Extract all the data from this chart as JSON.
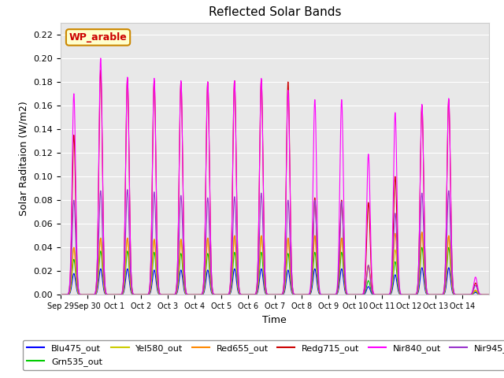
{
  "title": "Reflected Solar Bands",
  "xlabel": "Time",
  "ylabel": "Solar Raditaion (W/m2)",
  "ylim": [
    0,
    0.23
  ],
  "yticks": [
    0.0,
    0.02,
    0.04,
    0.06,
    0.08,
    0.1,
    0.12,
    0.14,
    0.16,
    0.18,
    0.2,
    0.22
  ],
  "bg_color": "#e8e8e8",
  "annotation_text": "WP_arable",
  "annotation_bg": "#ffffcc",
  "annotation_border": "#cc8800",
  "annotation_text_color": "#cc0000",
  "series_colors": {
    "Blu475_out": "#0000ff",
    "Grn535_out": "#00cc00",
    "Yel580_out": "#cccc00",
    "Red655_out": "#ff8800",
    "Redg715_out": "#cc0000",
    "Nir840_out": "#ff00ff",
    "Nir945_out": "#9933cc"
  },
  "peaks": {
    "Sep29": {
      "Blu475_out": 0.018,
      "Grn535_out": 0.03,
      "Yel580_out": 0.04,
      "Red655_out": 0.04,
      "Redg715_out": 0.135,
      "Nir840_out": 0.17,
      "Nir945_out": 0.08
    },
    "Sep30": {
      "Blu475_out": 0.022,
      "Grn535_out": 0.037,
      "Yel580_out": 0.048,
      "Red655_out": 0.048,
      "Redg715_out": 0.19,
      "Nir840_out": 0.2,
      "Nir945_out": 0.088
    },
    "Oct1": {
      "Blu475_out": 0.022,
      "Grn535_out": 0.037,
      "Yel580_out": 0.048,
      "Red655_out": 0.048,
      "Redg715_out": 0.183,
      "Nir840_out": 0.184,
      "Nir945_out": 0.089
    },
    "Oct2": {
      "Blu475_out": 0.021,
      "Grn535_out": 0.036,
      "Yel580_out": 0.047,
      "Red655_out": 0.047,
      "Redg715_out": 0.181,
      "Nir840_out": 0.183,
      "Nir945_out": 0.087
    },
    "Oct3": {
      "Blu475_out": 0.021,
      "Grn535_out": 0.035,
      "Yel580_out": 0.047,
      "Red655_out": 0.047,
      "Redg715_out": 0.18,
      "Nir840_out": 0.181,
      "Nir945_out": 0.084
    },
    "Oct4": {
      "Blu475_out": 0.021,
      "Grn535_out": 0.035,
      "Yel580_out": 0.048,
      "Red655_out": 0.048,
      "Redg715_out": 0.18,
      "Nir840_out": 0.18,
      "Nir945_out": 0.082
    },
    "Oct5": {
      "Blu475_out": 0.022,
      "Grn535_out": 0.036,
      "Yel580_out": 0.05,
      "Red655_out": 0.05,
      "Redg715_out": 0.181,
      "Nir840_out": 0.181,
      "Nir945_out": 0.083
    },
    "Oct6": {
      "Blu475_out": 0.022,
      "Grn535_out": 0.036,
      "Yel580_out": 0.05,
      "Red655_out": 0.05,
      "Redg715_out": 0.182,
      "Nir840_out": 0.183,
      "Nir945_out": 0.086
    },
    "Oct7": {
      "Blu475_out": 0.021,
      "Grn535_out": 0.035,
      "Yel580_out": 0.048,
      "Red655_out": 0.048,
      "Redg715_out": 0.18,
      "Nir840_out": 0.173,
      "Nir945_out": 0.08
    },
    "Oct8": {
      "Blu475_out": 0.022,
      "Grn535_out": 0.036,
      "Yel580_out": 0.05,
      "Red655_out": 0.05,
      "Redg715_out": 0.082,
      "Nir840_out": 0.165,
      "Nir945_out": 0.08
    },
    "Oct9": {
      "Blu475_out": 0.022,
      "Grn535_out": 0.036,
      "Yel580_out": 0.048,
      "Red655_out": 0.048,
      "Redg715_out": 0.08,
      "Nir840_out": 0.165,
      "Nir945_out": 0.079
    },
    "Oct10": {
      "Blu475_out": 0.007,
      "Grn535_out": 0.012,
      "Yel580_out": 0.025,
      "Red655_out": 0.025,
      "Redg715_out": 0.078,
      "Nir840_out": 0.119,
      "Nir945_out": 0.025
    },
    "Oct11": {
      "Blu475_out": 0.017,
      "Grn535_out": 0.028,
      "Yel580_out": 0.038,
      "Red655_out": 0.052,
      "Redg715_out": 0.1,
      "Nir840_out": 0.154,
      "Nir945_out": 0.069
    },
    "Oct12": {
      "Blu475_out": 0.023,
      "Grn535_out": 0.04,
      "Yel580_out": 0.053,
      "Red655_out": 0.053,
      "Redg715_out": 0.16,
      "Nir840_out": 0.161,
      "Nir945_out": 0.086
    },
    "Oct13": {
      "Blu475_out": 0.023,
      "Grn535_out": 0.04,
      "Yel580_out": 0.05,
      "Red655_out": 0.05,
      "Redg715_out": 0.165,
      "Nir840_out": 0.166,
      "Nir945_out": 0.088
    },
    "Oct14": {
      "Blu475_out": 0.002,
      "Grn535_out": 0.003,
      "Yel580_out": 0.004,
      "Red655_out": 0.004,
      "Redg715_out": 0.01,
      "Nir840_out": 0.015,
      "Nir945_out": 0.008
    }
  },
  "day_labels": [
    "Sep 29",
    "Sep 30",
    "Oct 1",
    "Oct 2",
    "Oct 3",
    "Oct 4",
    "Oct 5",
    "Oct 6",
    "Oct 7",
    "Oct 8",
    "Oct 9",
    "Oct 10",
    "Oct 11",
    "Oct 12",
    "Oct 13",
    "Oct 14"
  ]
}
